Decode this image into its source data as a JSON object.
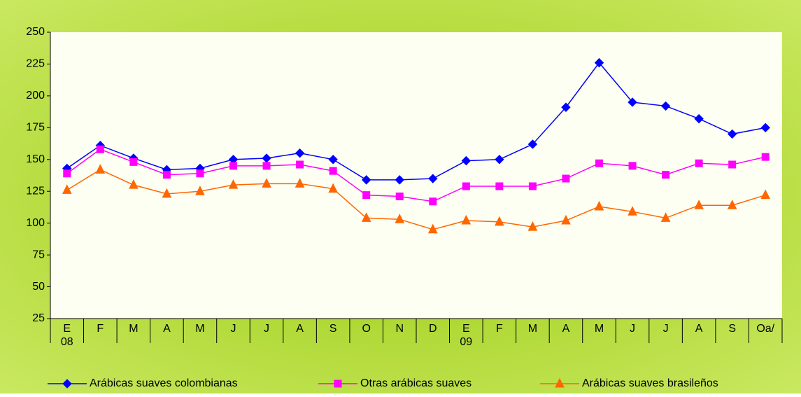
{
  "chart_data": {
    "type": "line",
    "categories": [
      "E",
      "F",
      "M",
      "A",
      "M",
      "J",
      "J",
      "A",
      "S",
      "O",
      "N",
      "D",
      "E",
      "F",
      "M",
      "A",
      "M",
      "J",
      "J",
      "A",
      "S",
      "Oa/"
    ],
    "category_years": [
      "08",
      null,
      null,
      null,
      null,
      null,
      null,
      null,
      null,
      null,
      null,
      null,
      "09",
      null,
      null,
      null,
      null,
      null,
      null,
      null,
      null,
      null
    ],
    "series": [
      {
        "name": "Arábicas suaves colombianas",
        "color": "#0000ff",
        "marker": "diamond",
        "values": [
          143,
          161,
          151,
          142,
          143,
          150,
          151,
          155,
          150,
          134,
          134,
          135,
          149,
          150,
          162,
          191,
          226,
          195,
          192,
          182,
          170,
          175
        ]
      },
      {
        "name": "Otras arábicas suaves",
        "color": "#ff00ff",
        "marker": "square",
        "values": [
          139,
          158,
          148,
          138,
          139,
          145,
          145,
          146,
          141,
          122,
          121,
          117,
          129,
          129,
          129,
          135,
          147,
          145,
          138,
          147,
          146,
          152
        ]
      },
      {
        "name": "Arábicas suaves brasileños",
        "color": "#ff6600",
        "marker": "triangle",
        "values": [
          126,
          142,
          130,
          123,
          125,
          130,
          131,
          131,
          127,
          104,
          103,
          95,
          102,
          101,
          97,
          102,
          113,
          109,
          104,
          114,
          114,
          122
        ]
      }
    ],
    "ylim": [
      25,
      250
    ],
    "yticks": [
      25,
      50,
      75,
      100,
      125,
      150,
      175,
      200,
      225,
      250
    ]
  }
}
